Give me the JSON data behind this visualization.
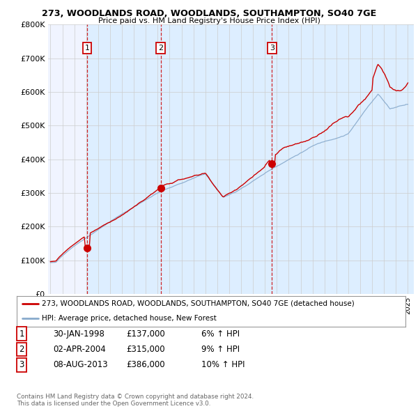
{
  "title1": "273, WOODLANDS ROAD, WOODLANDS, SOUTHAMPTON, SO40 7GE",
  "title2": "Price paid vs. HM Land Registry's House Price Index (HPI)",
  "ylabel_ticks": [
    "£0",
    "£100K",
    "£200K",
    "£300K",
    "£400K",
    "£500K",
    "£600K",
    "£700K",
    "£800K"
  ],
  "ytick_values": [
    0,
    100000,
    200000,
    300000,
    400000,
    500000,
    600000,
    700000,
    800000
  ],
  "xlim_start": 1994.8,
  "xlim_end": 2025.5,
  "ylim_min": 0,
  "ylim_max": 800000,
  "sale_dates": [
    1998.08,
    2004.25,
    2013.6
  ],
  "sale_prices": [
    137000,
    315000,
    386000
  ],
  "sale_labels": [
    "1",
    "2",
    "3"
  ],
  "red_color": "#cc0000",
  "blue_color": "#88aacc",
  "shade_color": "#ddeeff",
  "legend_line1": "273, WOODLANDS ROAD, WOODLANDS, SOUTHAMPTON, SO40 7GE (detached house)",
  "legend_line2": "HPI: Average price, detached house, New Forest",
  "table_rows": [
    [
      "1",
      "30-JAN-1998",
      "£137,000",
      "6% ↑ HPI"
    ],
    [
      "2",
      "02-APR-2004",
      "£315,000",
      "9% ↑ HPI"
    ],
    [
      "3",
      "08-AUG-2013",
      "£386,000",
      "10% ↑ HPI"
    ]
  ],
  "footnote": "Contains HM Land Registry data © Crown copyright and database right 2024.\nThis data is licensed under the Open Government Licence v3.0.",
  "bg_color": "#ffffff",
  "chart_bg": "#f0f4ff",
  "grid_color": "#cccccc"
}
